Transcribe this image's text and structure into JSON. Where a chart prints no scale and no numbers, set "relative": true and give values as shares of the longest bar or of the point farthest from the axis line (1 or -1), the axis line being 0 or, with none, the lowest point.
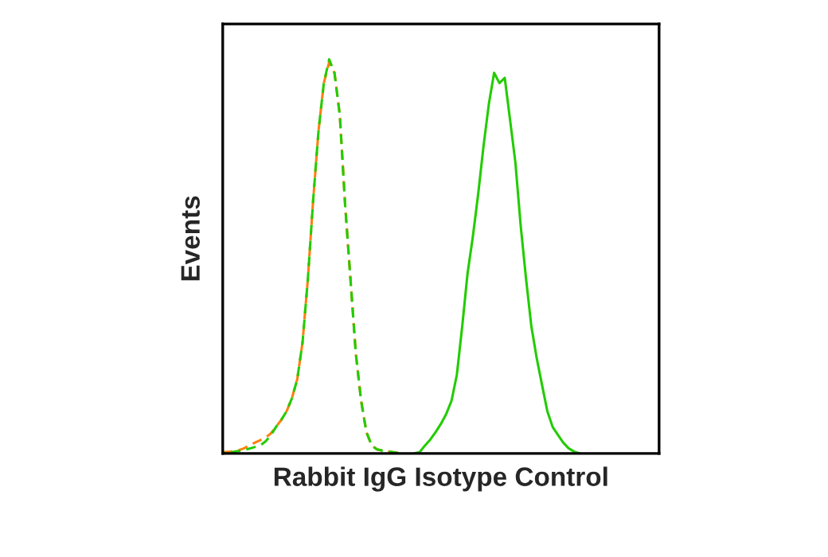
{
  "chart_data": {
    "type": "line",
    "relative": true,
    "xlabel": "Rabbit IgG Isotype Control",
    "ylabel": "Events",
    "marker": "none",
    "categories": [
      null,
      null,
      null,
      null,
      null,
      null,
      null,
      null,
      null,
      null,
      null,
      null,
      null,
      null,
      null,
      null,
      null,
      null,
      null,
      null,
      null,
      null,
      null,
      null,
      null,
      null,
      null,
      null,
      null,
      null,
      null,
      null,
      null,
      null,
      null,
      null,
      null,
      null,
      null,
      null,
      null,
      null,
      null,
      null,
      null,
      null,
      null,
      null,
      null,
      null,
      null,
      null,
      null,
      null,
      null,
      null,
      null,
      null,
      null,
      null,
      null,
      null,
      null,
      null,
      null,
      null,
      null,
      null,
      null,
      null,
      null,
      null,
      null,
      null,
      null,
      null,
      null,
      null,
      null,
      null,
      null,
      null,
      null
    ],
    "series": [
      {
        "color": "#ff7f0e",
        "line_style": "dashed",
        "values": [
          0.003,
          0.004,
          0.005,
          0.008,
          0.013,
          0.02,
          0.027,
          0.033,
          0.04,
          0.05,
          0.067,
          0.085,
          0.107,
          0.14,
          0.188,
          0.282,
          0.443,
          0.644,
          0.819,
          0.94,
          0.993,
          0.966,
          0.859,
          0.631,
          0.443,
          0.255,
          0.134,
          0.054,
          0.02,
          0.01,
          0.007,
          0.005,
          0.003,
          0.001,
          0,
          null,
          null,
          null,
          null,
          null,
          null,
          null,
          null,
          null,
          null,
          null,
          null,
          null,
          null,
          null,
          null,
          null,
          null,
          null,
          null,
          null,
          null,
          null,
          null,
          null,
          null,
          null,
          null,
          null,
          null,
          null,
          null,
          null,
          null,
          null,
          null,
          null,
          null,
          null,
          null,
          null,
          null,
          null,
          null,
          null,
          null,
          null,
          null
        ]
      },
      {
        "color": "#22cc00",
        "line_style": "dashed",
        "values": [
          0.002,
          0.003,
          0.004,
          0.006,
          0.009,
          0.012,
          0.016,
          0.02,
          0.03,
          0.045,
          0.067,
          0.085,
          0.107,
          0.14,
          0.188,
          0.282,
          0.443,
          0.644,
          0.819,
          0.94,
          1,
          0.966,
          0.859,
          0.631,
          0.443,
          0.255,
          0.134,
          0.054,
          0.02,
          0.01,
          0.007,
          0.005,
          0.003,
          0.001,
          0,
          null,
          null,
          null,
          null,
          null,
          null,
          null,
          null,
          null,
          null,
          null,
          null,
          null,
          null,
          null,
          null,
          null,
          null,
          null,
          null,
          null,
          null,
          null,
          null,
          null,
          null,
          null,
          null,
          null,
          null,
          null,
          null,
          null,
          null,
          null,
          null,
          null,
          null,
          null,
          null,
          null,
          null,
          null,
          null,
          null,
          null,
          null,
          null
        ]
      },
      {
        "color": "#22cc00",
        "line_style": "solid",
        "values": [
          null,
          null,
          null,
          null,
          null,
          null,
          null,
          null,
          null,
          null,
          null,
          null,
          null,
          null,
          null,
          null,
          null,
          null,
          null,
          null,
          null,
          null,
          null,
          null,
          null,
          null,
          null,
          null,
          null,
          null,
          null,
          null,
          null,
          null,
          null,
          null,
          0,
          0.003,
          0.02,
          0.035,
          0.054,
          0.075,
          0.1,
          0.134,
          0.2,
          0.322,
          0.456,
          0.55,
          0.658,
          0.779,
          0.886,
          0.966,
          0.94,
          0.953,
          0.846,
          0.738,
          0.577,
          0.443,
          0.322,
          0.242,
          0.174,
          0.107,
          0.067,
          0.047,
          0.027,
          0.013,
          0.005,
          0,
          null,
          null,
          null,
          null,
          null,
          null,
          null,
          null,
          null,
          null,
          null,
          null,
          null,
          null,
          null
        ]
      }
    ]
  }
}
